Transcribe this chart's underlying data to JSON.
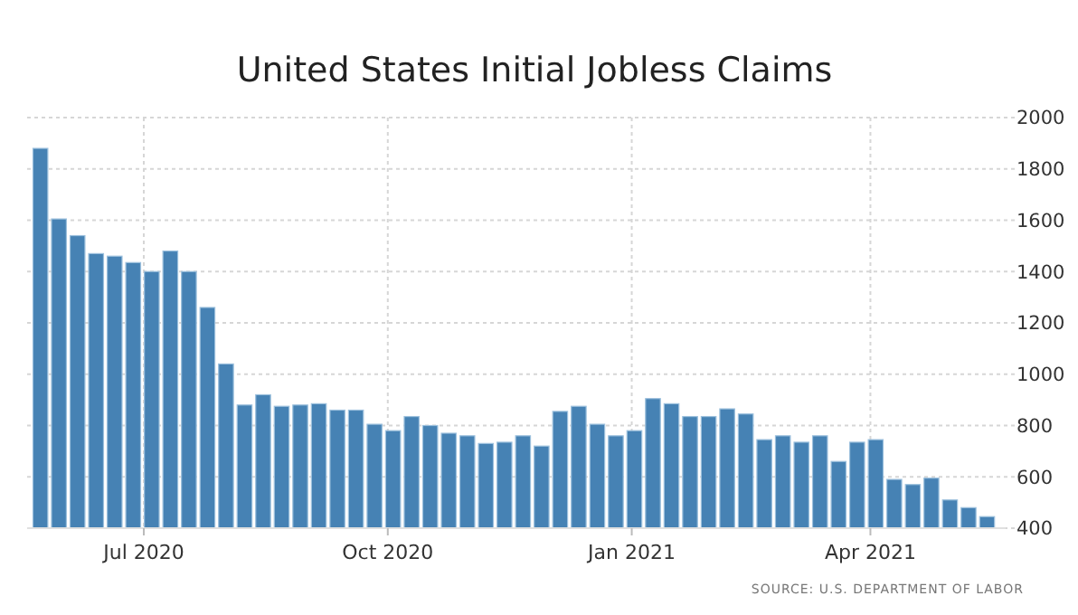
{
  "chart_data": {
    "type": "bar",
    "title": "United States Initial Jobless Claims",
    "x": [
      "2020-05-23",
      "2020-05-30",
      "2020-06-06",
      "2020-06-13",
      "2020-06-20",
      "2020-06-27",
      "2020-07-04",
      "2020-07-11",
      "2020-07-18",
      "2020-07-25",
      "2020-08-01",
      "2020-08-08",
      "2020-08-15",
      "2020-08-22",
      "2020-08-29",
      "2020-09-05",
      "2020-09-12",
      "2020-09-19",
      "2020-09-26",
      "2020-10-03",
      "2020-10-10",
      "2020-10-17",
      "2020-10-24",
      "2020-10-31",
      "2020-11-07",
      "2020-11-14",
      "2020-11-21",
      "2020-11-28",
      "2020-12-05",
      "2020-12-12",
      "2020-12-19",
      "2020-12-26",
      "2021-01-02",
      "2021-01-09",
      "2021-01-16",
      "2021-01-23",
      "2021-01-30",
      "2021-02-06",
      "2021-02-13",
      "2021-02-20",
      "2021-02-27",
      "2021-03-06",
      "2021-03-13",
      "2021-03-20",
      "2021-03-27",
      "2021-04-03",
      "2021-04-10",
      "2021-04-17",
      "2021-04-24",
      "2021-05-01",
      "2021-05-08",
      "2021-05-15"
    ],
    "values": [
      1880,
      1605,
      1540,
      1470,
      1460,
      1435,
      1400,
      1480,
      1400,
      1260,
      1040,
      880,
      920,
      875,
      880,
      885,
      860,
      860,
      805,
      780,
      835,
      800,
      770,
      760,
      730,
      735,
      760,
      720,
      855,
      875,
      805,
      760,
      780,
      905,
      885,
      835,
      835,
      865,
      845,
      745,
      760,
      735,
      760,
      660,
      735,
      745,
      590,
      570,
      595,
      510,
      480,
      445
    ],
    "color": "#4682b4",
    "xlim": [
      "2020-05-18",
      "2021-05-22"
    ],
    "xticks": [
      {
        "value": "2020-07-01",
        "label": "Jul 2020"
      },
      {
        "value": "2020-10-01",
        "label": "Oct 2020"
      },
      {
        "value": "2021-01-01",
        "label": "Jan 2021"
      },
      {
        "value": "2021-04-01",
        "label": "Apr 2021"
      }
    ],
    "ylim": [
      400,
      2000
    ],
    "yticks": [
      400,
      600,
      800,
      1000,
      1200,
      1400,
      1600,
      1800,
      2000
    ],
    "grid": true,
    "annotations": [
      "SOURCE: U.S. DEPARTMENT OF LABOR"
    ]
  }
}
